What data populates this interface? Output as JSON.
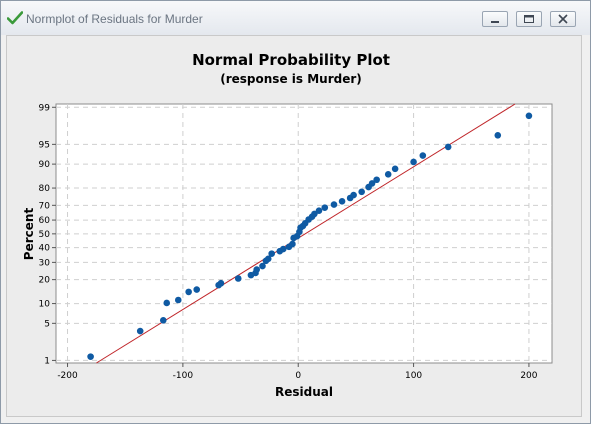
{
  "window": {
    "title": "Normplot of Residuals for Murder",
    "accent_color": "#3a9a3a"
  },
  "controls": {
    "minimize": "minimize-icon",
    "maximize": "maximize-icon",
    "close": "close-icon"
  },
  "chart_data": {
    "type": "scatter",
    "title": "Normal Probability Plot",
    "subtitle": "(response is Murder)",
    "xlabel": "Residual",
    "ylabel": "Percent",
    "xlim": [
      -210,
      220
    ],
    "ylim": [
      0.88,
      99.15
    ],
    "y_scale": "normal-probability",
    "x_ticks": [
      -200,
      -100,
      0,
      100,
      200
    ],
    "y_ticks": [
      1,
      5,
      10,
      20,
      30,
      40,
      50,
      60,
      70,
      80,
      90,
      95,
      99
    ],
    "grid": true,
    "point_color": "#0f5aa3",
    "fit_line_color": "#c0262a",
    "fit_line": {
      "x": [
        -175,
        188
      ],
      "y": [
        0.88,
        99.15
      ]
    },
    "series": [
      {
        "x": [
          -180,
          -137,
          -117,
          -114,
          -104,
          -95,
          -88,
          -69,
          -67,
          -52,
          -41,
          -37,
          -36,
          -31,
          -28,
          -26,
          -23,
          -16,
          -13,
          -8,
          -5,
          -4,
          -1,
          1,
          2,
          4,
          6,
          9,
          12,
          14,
          18,
          23,
          31,
          38,
          45,
          48,
          55,
          61,
          64,
          68,
          78,
          84,
          100,
          108,
          130,
          173,
          200
        ],
        "y": [
          1.2,
          3.7,
          5.6,
          10.2,
          11.2,
          14.3,
          15.3,
          17.3,
          18.2,
          20.6,
          22.4,
          23.6,
          25.6,
          27.7,
          31,
          32.3,
          35.8,
          37.5,
          39,
          40.6,
          42.6,
          47,
          48.3,
          51.5,
          54.5,
          55.7,
          57.7,
          60.4,
          62.4,
          64.3,
          66.5,
          68.5,
          70.5,
          72.5,
          74.5,
          76.2,
          78,
          80.5,
          82.3,
          84,
          86.3,
          88.4,
          90.7,
          92.5,
          94.5,
          96.5,
          98.5
        ]
      }
    ]
  }
}
